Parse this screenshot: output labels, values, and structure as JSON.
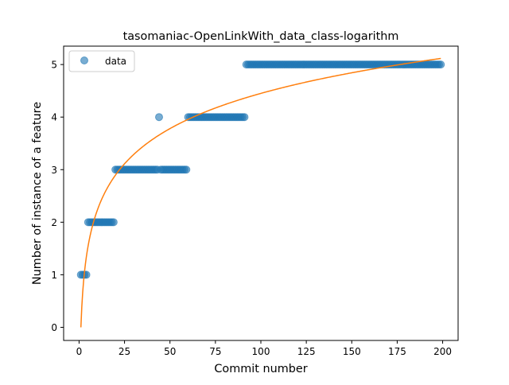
{
  "chart_data": {
    "type": "scatter",
    "title": "tasomaniac-OpenLinkWith_data_class-logarithm",
    "xlabel": "Commit number",
    "ylabel": "Number of instance of a feature",
    "xlim": [
      -8.5,
      208.5
    ],
    "ylim": [
      -0.25,
      5.35
    ],
    "xticks": [
      0,
      25,
      50,
      75,
      100,
      125,
      150,
      175,
      200
    ],
    "yticks": [
      0,
      1,
      2,
      3,
      4,
      5
    ],
    "grid": false,
    "legend": {
      "position": "top-left",
      "entries": [
        "data"
      ]
    },
    "series": [
      {
        "name": "data",
        "kind": "points",
        "color": "#1f77b4",
        "segments": [
          {
            "from": 1,
            "to": 4,
            "y": 1
          },
          {
            "from": 5,
            "to": 19,
            "y": 2
          },
          {
            "from": 20,
            "to": 43,
            "y": 3
          },
          {
            "from": 44,
            "to": 44,
            "y": 4
          },
          {
            "from": 45,
            "to": 59,
            "y": 3
          },
          {
            "from": 60,
            "to": 91,
            "y": 4
          },
          {
            "from": 92,
            "to": 199,
            "y": 5
          }
        ]
      },
      {
        "kind": "fit-line",
        "color": "#ff7f0e",
        "model": "a + b*ln(x)",
        "a": 0.0,
        "b": 0.9665,
        "x_range": [
          1,
          199
        ]
      }
    ]
  }
}
